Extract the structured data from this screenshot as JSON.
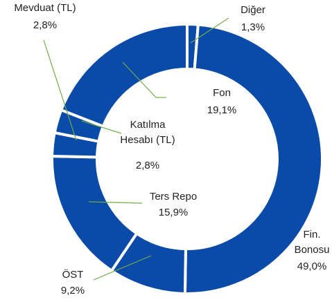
{
  "chart_data": {
    "type": "donut",
    "categories": [
      "Diğer",
      "Fin. Bonosu",
      "ÖST",
      "Ters Repo",
      "Katılma Hesabı (TL)",
      "Mevduat (TL)",
      "Fon"
    ],
    "values": [
      1.3,
      49.0,
      9.2,
      15.9,
      2.8,
      2.8,
      19.1
    ],
    "value_labels": [
      "1,3%",
      "49,0%",
      "9,2%",
      "15,9%",
      "2,8%",
      "2,8%",
      "19,1%"
    ],
    "color": "#0a4aa8"
  }
}
